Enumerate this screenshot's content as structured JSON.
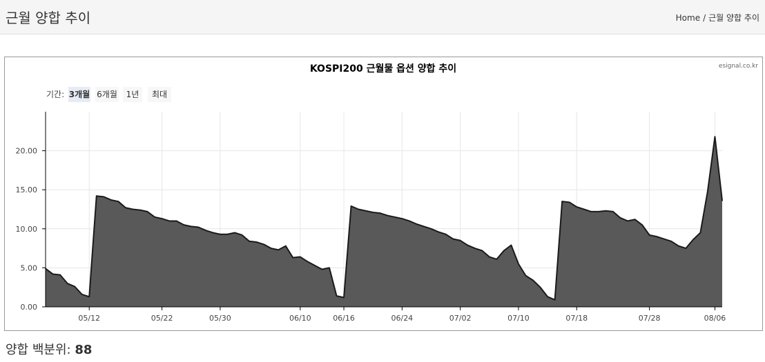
{
  "page": {
    "title": "근월 양합 추이"
  },
  "breadcrumb": {
    "home": "Home",
    "separator": "/",
    "current": "근월 양합 추이"
  },
  "credit": "esignal.co.kr",
  "range_selector": {
    "label": "기간:",
    "options": [
      "3개월",
      "6개월",
      "1년",
      "최대"
    ],
    "selected": "3개월"
  },
  "footer": {
    "label": "양합 백분위:",
    "value": "88"
  },
  "colors": {
    "fill": "#595959",
    "line": "#1a1a1a",
    "grid": "#e6e6e6",
    "selected_bg": "#e6ebf5",
    "button_bg": "#f7f7f7"
  },
  "chart_data": {
    "type": "area",
    "title": "KOSPI200 근월물 옵션 양합 추이",
    "xlabel": "",
    "ylabel": "",
    "x_range": [
      "2025-05-06",
      "2025-08-07"
    ],
    "ylim": [
      0,
      25
    ],
    "yticks": [
      0,
      5,
      10,
      15,
      20
    ],
    "ytick_labels": [
      "0.00",
      "5.00",
      "10.00",
      "15.00",
      "20.00"
    ],
    "xticks": [
      "2025-05-12",
      "2025-05-22",
      "2025-05-30",
      "2025-06-10",
      "2025-06-16",
      "2025-06-24",
      "2025-07-02",
      "2025-07-10",
      "2025-07-18",
      "2025-07-28",
      "2025-08-06"
    ],
    "xtick_labels": [
      "05/12",
      "05/22",
      "05/30",
      "06/10",
      "06/16",
      "06/24",
      "07/02",
      "07/10",
      "07/18",
      "07/28",
      "08/06"
    ],
    "grid": true,
    "legend": false,
    "series": [
      {
        "x": [
          "2025-05-06",
          "2025-05-07",
          "2025-05-08",
          "2025-05-09",
          "2025-05-10",
          "2025-05-11",
          "2025-05-12",
          "2025-05-13",
          "2025-05-14",
          "2025-05-15",
          "2025-05-16",
          "2025-05-17",
          "2025-05-18",
          "2025-05-19",
          "2025-05-20",
          "2025-05-21",
          "2025-05-22",
          "2025-05-23",
          "2025-05-24",
          "2025-05-25",
          "2025-05-26",
          "2025-05-27",
          "2025-05-28",
          "2025-05-29",
          "2025-05-30",
          "2025-05-31",
          "2025-06-01",
          "2025-06-02",
          "2025-06-03",
          "2025-06-04",
          "2025-06-05",
          "2025-06-06",
          "2025-06-07",
          "2025-06-08",
          "2025-06-09",
          "2025-06-10",
          "2025-06-11",
          "2025-06-12",
          "2025-06-13",
          "2025-06-14",
          "2025-06-15",
          "2025-06-16",
          "2025-06-17",
          "2025-06-18",
          "2025-06-19",
          "2025-06-20",
          "2025-06-21",
          "2025-06-22",
          "2025-06-23",
          "2025-06-24",
          "2025-06-25",
          "2025-06-26",
          "2025-06-27",
          "2025-06-28",
          "2025-06-29",
          "2025-06-30",
          "2025-07-01",
          "2025-07-02",
          "2025-07-03",
          "2025-07-04",
          "2025-07-05",
          "2025-07-06",
          "2025-07-07",
          "2025-07-08",
          "2025-07-09",
          "2025-07-10",
          "2025-07-11",
          "2025-07-12",
          "2025-07-13",
          "2025-07-14",
          "2025-07-15",
          "2025-07-16",
          "2025-07-17",
          "2025-07-18",
          "2025-07-19",
          "2025-07-20",
          "2025-07-21",
          "2025-07-22",
          "2025-07-23",
          "2025-07-24",
          "2025-07-25",
          "2025-07-26",
          "2025-07-27",
          "2025-07-28",
          "2025-07-29",
          "2025-07-30",
          "2025-07-31",
          "2025-08-01",
          "2025-08-02",
          "2025-08-03",
          "2025-08-04",
          "2025-08-05",
          "2025-08-06",
          "2025-08-07"
        ],
        "values": [
          4.9,
          4.2,
          4.1,
          3.0,
          2.6,
          1.6,
          1.3,
          14.2,
          14.1,
          13.7,
          13.5,
          12.7,
          12.5,
          12.4,
          12.2,
          11.5,
          11.3,
          11.0,
          11.0,
          10.5,
          10.3,
          10.2,
          9.8,
          9.5,
          9.3,
          9.3,
          9.5,
          9.2,
          8.4,
          8.3,
          8.0,
          7.5,
          7.3,
          7.8,
          6.3,
          6.4,
          5.8,
          5.3,
          4.8,
          5.0,
          1.4,
          1.2,
          12.9,
          12.5,
          12.3,
          12.1,
          12.0,
          11.7,
          11.5,
          11.3,
          11.0,
          10.6,
          10.3,
          10.0,
          9.6,
          9.3,
          8.7,
          8.5,
          7.9,
          7.5,
          7.2,
          6.4,
          6.1,
          7.2,
          7.9,
          5.5,
          4.0,
          3.4,
          2.5,
          1.3,
          0.9,
          13.5,
          13.4,
          12.8,
          12.5,
          12.2,
          12.2,
          12.3,
          12.2,
          11.4,
          11.0,
          11.2,
          10.5,
          9.2,
          9.0,
          8.7,
          8.4,
          7.8,
          7.5,
          8.6,
          9.5,
          14.8,
          21.8,
          13.6
        ]
      }
    ]
  }
}
